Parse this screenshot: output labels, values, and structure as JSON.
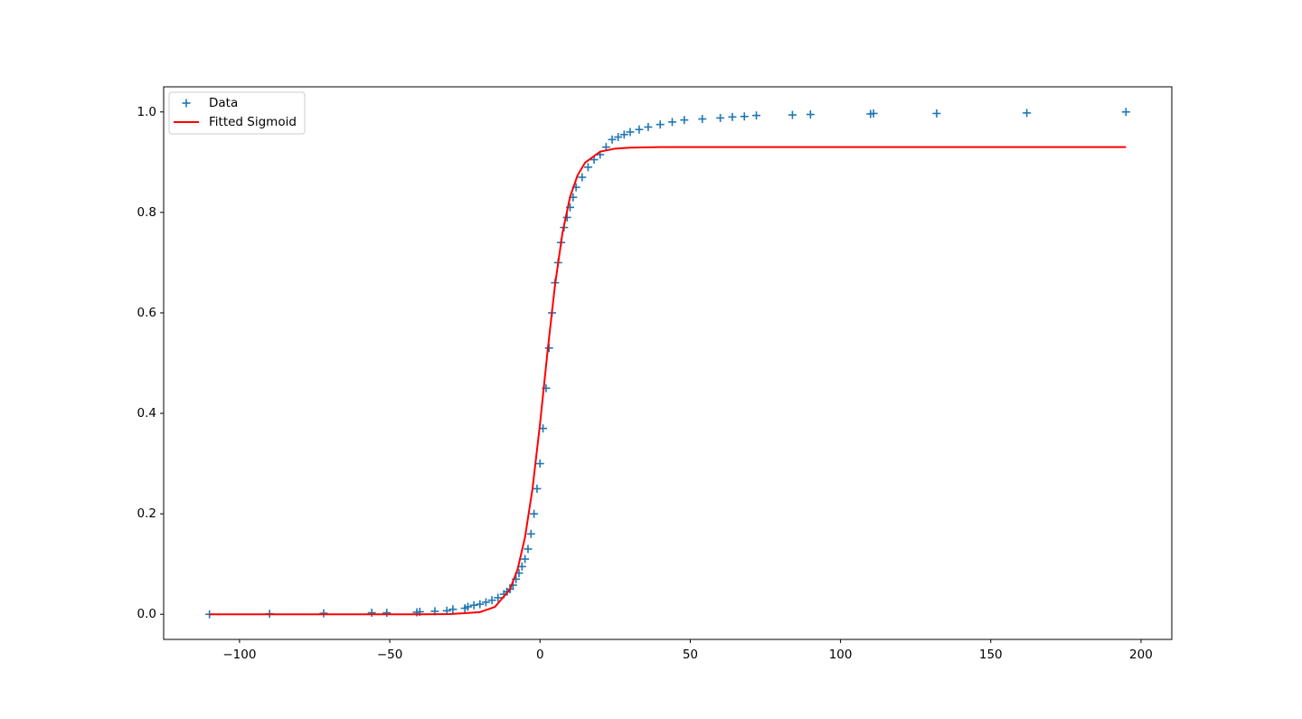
{
  "chart_data": {
    "type": "scatter-line",
    "series": [
      {
        "name": "Data",
        "type": "scatter",
        "color": "#1f77b4",
        "x": [
          -110,
          -90,
          -72,
          -56,
          -51,
          -41,
          -40,
          -35,
          -31,
          -29,
          -25,
          -24,
          -22,
          -20,
          -18,
          -16,
          -14,
          -12,
          -11,
          -10,
          -9,
          -8,
          -7,
          -6,
          -5,
          -4,
          -3,
          -2,
          -1,
          0,
          1,
          2,
          3,
          4,
          5,
          6,
          7,
          8,
          9,
          10,
          11,
          12,
          14,
          16,
          18,
          20,
          22,
          24,
          26,
          28,
          30,
          33,
          36,
          40,
          44,
          48,
          54,
          60,
          64,
          68,
          72,
          84,
          90,
          110,
          111,
          132,
          162,
          195
        ],
        "y": [
          0.0,
          0.001,
          0.002,
          0.003,
          0.003,
          0.004,
          0.005,
          0.006,
          0.007,
          0.01,
          0.012,
          0.015,
          0.018,
          0.02,
          0.024,
          0.028,
          0.033,
          0.04,
          0.045,
          0.05,
          0.058,
          0.07,
          0.082,
          0.095,
          0.11,
          0.13,
          0.16,
          0.2,
          0.25,
          0.3,
          0.37,
          0.45,
          0.53,
          0.6,
          0.66,
          0.7,
          0.74,
          0.77,
          0.79,
          0.81,
          0.83,
          0.85,
          0.87,
          0.89,
          0.905,
          0.915,
          0.93,
          0.945,
          0.95,
          0.955,
          0.96,
          0.965,
          0.97,
          0.975,
          0.98,
          0.984,
          0.986,
          0.988,
          0.99,
          0.991,
          0.993,
          0.994,
          0.995,
          0.996,
          0.997,
          0.997,
          0.998,
          1.0
        ]
      },
      {
        "name": "Fitted Sigmoid",
        "type": "line",
        "color": "#ff0000",
        "x": [
          -110,
          -40,
          -30,
          -20,
          -15,
          -10,
          -7.5,
          -5,
          -2.5,
          0,
          2.5,
          5,
          7.5,
          10,
          12.5,
          15,
          20,
          25,
          30,
          40,
          195
        ],
        "y": [
          0,
          0,
          0.0004,
          0.0043,
          0.0148,
          0.0497,
          0.0887,
          0.153,
          0.25,
          0.379,
          0.523,
          0.656,
          0.76,
          0.831,
          0.874,
          0.899,
          0.921,
          0.927,
          0.929,
          0.93,
          0.93
        ]
      }
    ],
    "xlim": [
      -125.25,
      210.25
    ],
    "ylim": [
      -0.05,
      1.05
    ],
    "xticks": [
      {
        "value": -100,
        "label": "−100"
      },
      {
        "value": -50,
        "label": "−50"
      },
      0,
      50,
      100,
      150,
      200
    ],
    "yticks": [
      {
        "value": 0,
        "label": "0.0"
      },
      {
        "value": 0.2,
        "label": "0.2"
      },
      {
        "value": 0.4,
        "label": "0.4"
      },
      {
        "value": 0.6,
        "label": "0.6"
      },
      {
        "value": 0.8,
        "label": "0.8"
      },
      {
        "value": 1.0,
        "label": "1.0"
      }
    ],
    "legend": "upper left"
  }
}
